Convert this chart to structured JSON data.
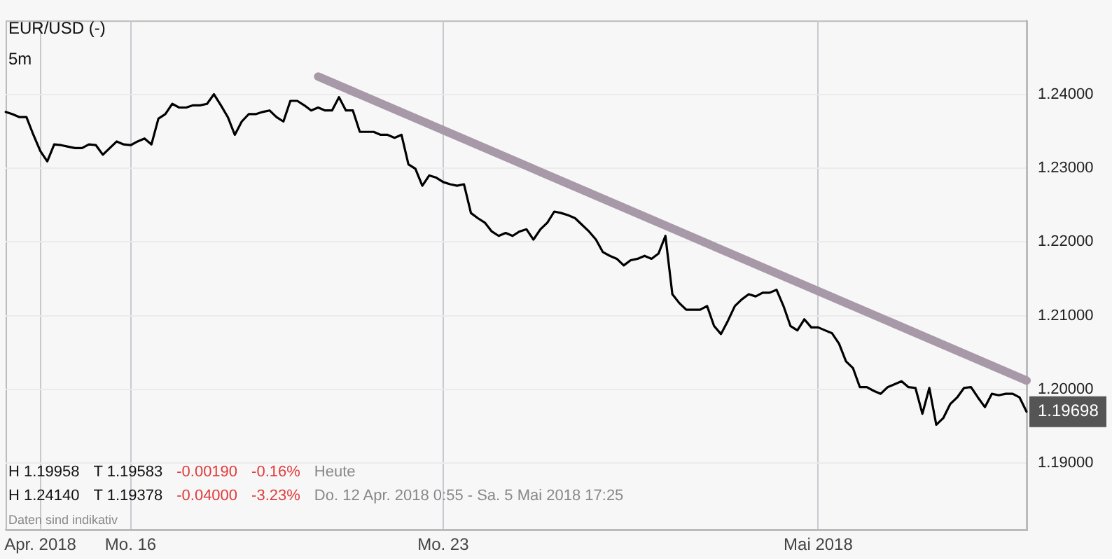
{
  "chart_data": {
    "type": "line",
    "title": "EUR/USD (-)",
    "subtitle": "5m",
    "categories": [
      null,
      null,
      null,
      null,
      null,
      "Apr. 2018",
      null,
      null,
      null,
      null,
      null,
      null,
      null,
      null,
      null,
      null,
      null,
      null,
      "Mo. 16",
      null,
      null,
      null,
      null,
      null,
      null,
      null,
      null,
      null,
      null,
      null,
      null,
      null,
      null,
      null,
      null,
      null,
      null,
      null,
      null,
      null,
      null,
      null,
      null,
      null,
      null,
      null,
      null,
      null,
      null,
      null,
      null,
      null,
      null,
      null,
      null,
      null,
      null,
      null,
      null,
      null,
      null,
      null,
      null,
      "Mo. 23",
      null,
      null,
      null,
      null,
      null,
      null,
      null,
      null,
      null,
      null,
      null,
      null,
      null,
      null,
      null,
      null,
      null,
      null,
      null,
      null,
      null,
      null,
      null,
      null,
      null,
      null,
      null,
      null,
      null,
      null,
      null,
      null,
      null,
      null,
      null,
      null,
      null,
      null,
      null,
      null,
      null,
      null,
      null,
      null,
      null,
      null,
      null,
      null,
      null,
      null,
      null,
      null,
      null,
      "Mai 2018",
      null,
      null,
      null,
      null,
      null,
      null,
      null,
      null,
      null,
      null,
      null,
      null,
      null,
      null,
      null,
      null,
      null,
      null,
      null,
      null,
      null,
      null,
      null,
      null,
      null,
      null,
      null,
      null,
      null,
      null
    ],
    "series": [
      {
        "color": "#000000",
        "values": [
          1.2376,
          1.2373,
          1.2369,
          1.2369,
          1.2345,
          1.2323,
          1.2309,
          1.2332,
          1.2331,
          1.2329,
          1.2327,
          1.2327,
          1.2332,
          1.2331,
          1.2318,
          1.2327,
          1.2336,
          1.2332,
          1.2331,
          1.2336,
          1.234,
          1.2332,
          1.2367,
          1.2373,
          1.2387,
          1.2382,
          1.2382,
          1.2385,
          1.2385,
          1.2387,
          1.24,
          1.2385,
          1.2369,
          1.2345,
          1.2363,
          1.2373,
          1.2373,
          1.2376,
          1.2378,
          1.2369,
          1.2363,
          1.2391,
          1.2391,
          1.2385,
          1.2378,
          1.2382,
          1.2378,
          1.2378,
          1.2396,
          1.2378,
          1.2378,
          1.2349,
          1.2349,
          1.2349,
          1.2345,
          1.2345,
          1.2341,
          1.2345,
          1.2305,
          1.2299,
          1.2276,
          1.229,
          1.2287,
          1.2281,
          1.2278,
          1.2276,
          1.2278,
          1.2239,
          1.2232,
          1.2226,
          1.2214,
          1.2208,
          1.2212,
          1.2208,
          1.2214,
          1.2217,
          1.2203,
          1.2217,
          1.2226,
          1.2241,
          1.2239,
          1.2236,
          1.2232,
          1.2223,
          1.2214,
          1.2203,
          1.2186,
          1.2181,
          1.2177,
          1.2168,
          1.2175,
          1.2177,
          1.2181,
          1.2177,
          1.2184,
          1.2208,
          1.2129,
          1.2117,
          1.2108,
          1.2108,
          1.2108,
          1.2113,
          1.2086,
          1.2075,
          1.2093,
          1.2113,
          1.2122,
          1.2129,
          1.2126,
          1.2131,
          1.2131,
          1.2135,
          1.2113,
          1.2086,
          1.208,
          1.2095,
          1.2084,
          1.2084,
          1.208,
          1.2076,
          1.2062,
          1.2038,
          1.2029,
          1.2003,
          1.2003,
          1.1998,
          1.1994,
          1.2003,
          1.2007,
          1.2011,
          1.2003,
          1.2002,
          1.1967,
          1.2002,
          1.1952,
          1.1961,
          1.198,
          1.1989,
          1.2002,
          1.2003,
          1.1989,
          1.1976,
          1.1994,
          1.1992,
          1.1994,
          1.1994,
          1.1989,
          1.19698
        ],
        "value_labels": [
          null,
          null,
          null,
          null,
          null,
          null,
          null,
          null,
          null,
          null,
          null,
          null,
          null,
          null,
          null,
          null,
          null,
          null,
          null,
          null,
          null,
          null,
          null,
          null,
          null,
          null,
          null,
          null,
          null,
          null,
          null,
          null,
          null,
          null,
          null,
          null,
          null,
          null,
          null,
          null,
          null,
          null,
          null,
          null,
          null,
          null,
          null,
          null,
          null,
          null,
          null,
          null,
          null,
          null,
          null,
          null,
          null,
          null,
          null,
          null,
          null,
          null,
          null,
          null,
          null,
          null,
          null,
          null,
          null,
          null,
          null,
          null,
          null,
          null,
          null,
          null,
          null,
          null,
          null,
          null,
          null,
          null,
          null,
          null,
          null,
          null,
          null,
          null,
          null,
          null,
          null,
          null,
          null,
          null,
          null,
          null,
          null,
          null,
          null,
          null,
          null,
          null,
          null,
          null,
          null,
          null,
          null,
          null,
          null,
          null,
          null,
          null,
          null,
          null,
          null,
          null,
          null,
          null,
          null,
          null,
          null,
          null,
          null,
          null,
          null,
          null,
          null,
          null,
          null,
          null,
          null,
          null,
          null,
          null,
          null,
          null,
          null,
          null,
          null,
          null,
          null,
          null,
          null,
          null,
          null,
          null,
          null,
          "1.19698"
        ]
      },
      {
        "color": "#a899a8",
        "values": [
          null,
          null,
          null,
          null,
          null,
          null,
          null,
          null,
          null,
          null,
          null,
          null,
          null,
          null,
          null,
          null,
          null,
          null,
          null,
          null,
          null,
          null,
          null,
          null,
          null,
          null,
          null,
          null,
          null,
          null,
          null,
          null,
          null,
          null,
          null,
          null,
          null,
          null,
          null,
          null,
          null,
          null,
          null,
          null,
          null,
          1.2424,
          null,
          null,
          null,
          null,
          null,
          null,
          null,
          null,
          null,
          null,
          null,
          null,
          null,
          null,
          null,
          null,
          null,
          null,
          null,
          null,
          null,
          null,
          null,
          null,
          null,
          null,
          null,
          null,
          null,
          null,
          null,
          null,
          null,
          null,
          null,
          null,
          null,
          null,
          null,
          null,
          null,
          null,
          null,
          null,
          null,
          null,
          null,
          null,
          null,
          null,
          null,
          null,
          null,
          null,
          null,
          null,
          null,
          null,
          null,
          null,
          null,
          null,
          null,
          null,
          null,
          null,
          null,
          null,
          null,
          null,
          null,
          null,
          null,
          null,
          null,
          null,
          null,
          null,
          null,
          null,
          null,
          null,
          null,
          null,
          null,
          null,
          null,
          null,
          null,
          null,
          null,
          null,
          null,
          null,
          null,
          null,
          null,
          null,
          null,
          null,
          null,
          1.2012
        ]
      }
    ],
    "ylim": [
      1.181,
      1.25
    ],
    "yticks": [
      {
        "value": 1.19,
        "label": "1.19000"
      },
      {
        "value": 1.2,
        "label": "1.20000"
      },
      {
        "value": 1.21,
        "label": "1.21000"
      },
      {
        "value": 1.22,
        "label": "1.22000"
      },
      {
        "value": 1.23,
        "label": "1.23000"
      },
      {
        "value": 1.24,
        "label": "1.24000"
      }
    ],
    "grid": true,
    "legend": false,
    "marker": "none",
    "line_style": "solid",
    "annotations": [
      "H 1.19958",
      "T 1.19583",
      "-0.00190",
      "-0.16%",
      "Heute",
      "H 1.24140",
      "T 1.19378",
      "-0.04000",
      "-3.23%",
      "Do. 12 Apr. 2018 0:55 - Sa. 5 Mai 2018 17:25",
      "Daten sind indikativ"
    ]
  }
}
